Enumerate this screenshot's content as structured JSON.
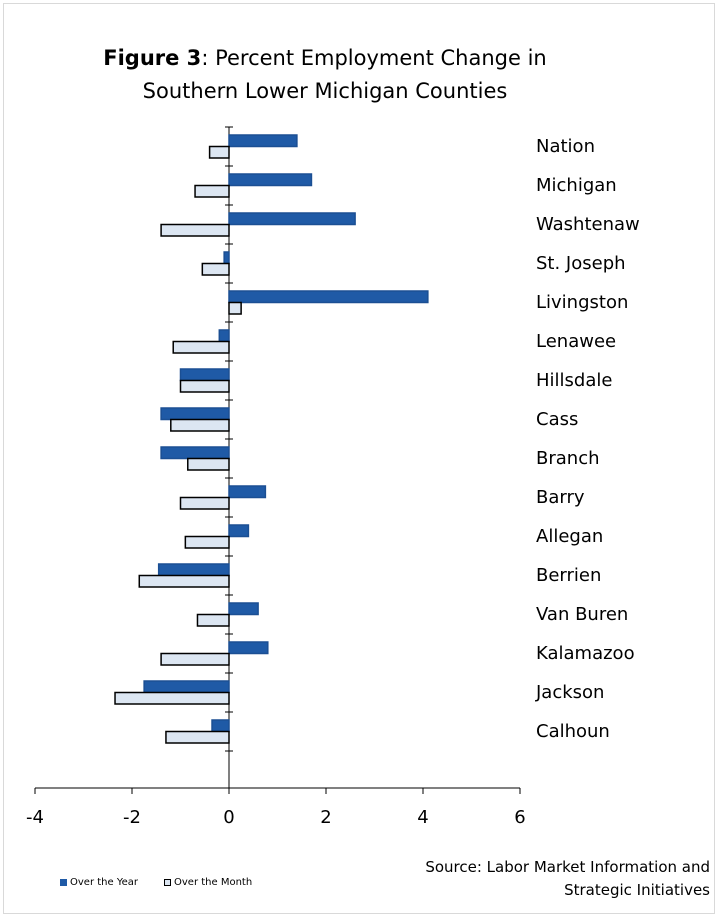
{
  "title": {
    "lead": "Figure 3",
    "rest_line1": ": Percent Employment Change in",
    "line2": "Southern Lower Michigan Counties"
  },
  "source": {
    "line1": "Source: Labor Market Information and",
    "line2": "Strategic Initiatives"
  },
  "legend": {
    "year_label": "Over the Year",
    "month_label": "Over the Month"
  },
  "colors": {
    "over_the_year_fill": "#1f5aa6",
    "over_the_year_stroke": "#1b4f93",
    "over_the_month_fill": "#dce6f2",
    "over_the_month_stroke": "#000000",
    "axis": "#000000"
  },
  "chart_data": {
    "type": "bar",
    "orientation": "horizontal",
    "categories": [
      "Nation",
      "Michigan",
      "Washtenaw",
      "St. Joseph",
      "Livingston",
      "Lenawee",
      "Hillsdale",
      "Cass",
      "Branch",
      "Barry",
      "Allegan",
      "Berrien",
      "Van Buren",
      "Kalamazoo",
      "Jackson",
      "Calhoun"
    ],
    "series": [
      {
        "name": "Over the Year",
        "values": [
          1.4,
          1.7,
          2.6,
          -0.1,
          4.1,
          -0.2,
          -1.0,
          -1.4,
          -1.4,
          0.75,
          0.4,
          -1.45,
          0.6,
          0.8,
          -1.75,
          -0.35
        ]
      },
      {
        "name": "Over the Month",
        "values": [
          -0.4,
          -0.7,
          -1.4,
          -0.55,
          0.25,
          -1.15,
          -1.0,
          -1.2,
          -0.85,
          -1.0,
          -0.9,
          -1.85,
          -0.65,
          -1.4,
          -2.35,
          -1.3
        ]
      }
    ],
    "xlim": [
      -4,
      6
    ],
    "xticks": [
      "-4",
      "-2",
      "0",
      "2",
      "4",
      "6"
    ],
    "grid": false,
    "legend_position": "bottom-left"
  }
}
